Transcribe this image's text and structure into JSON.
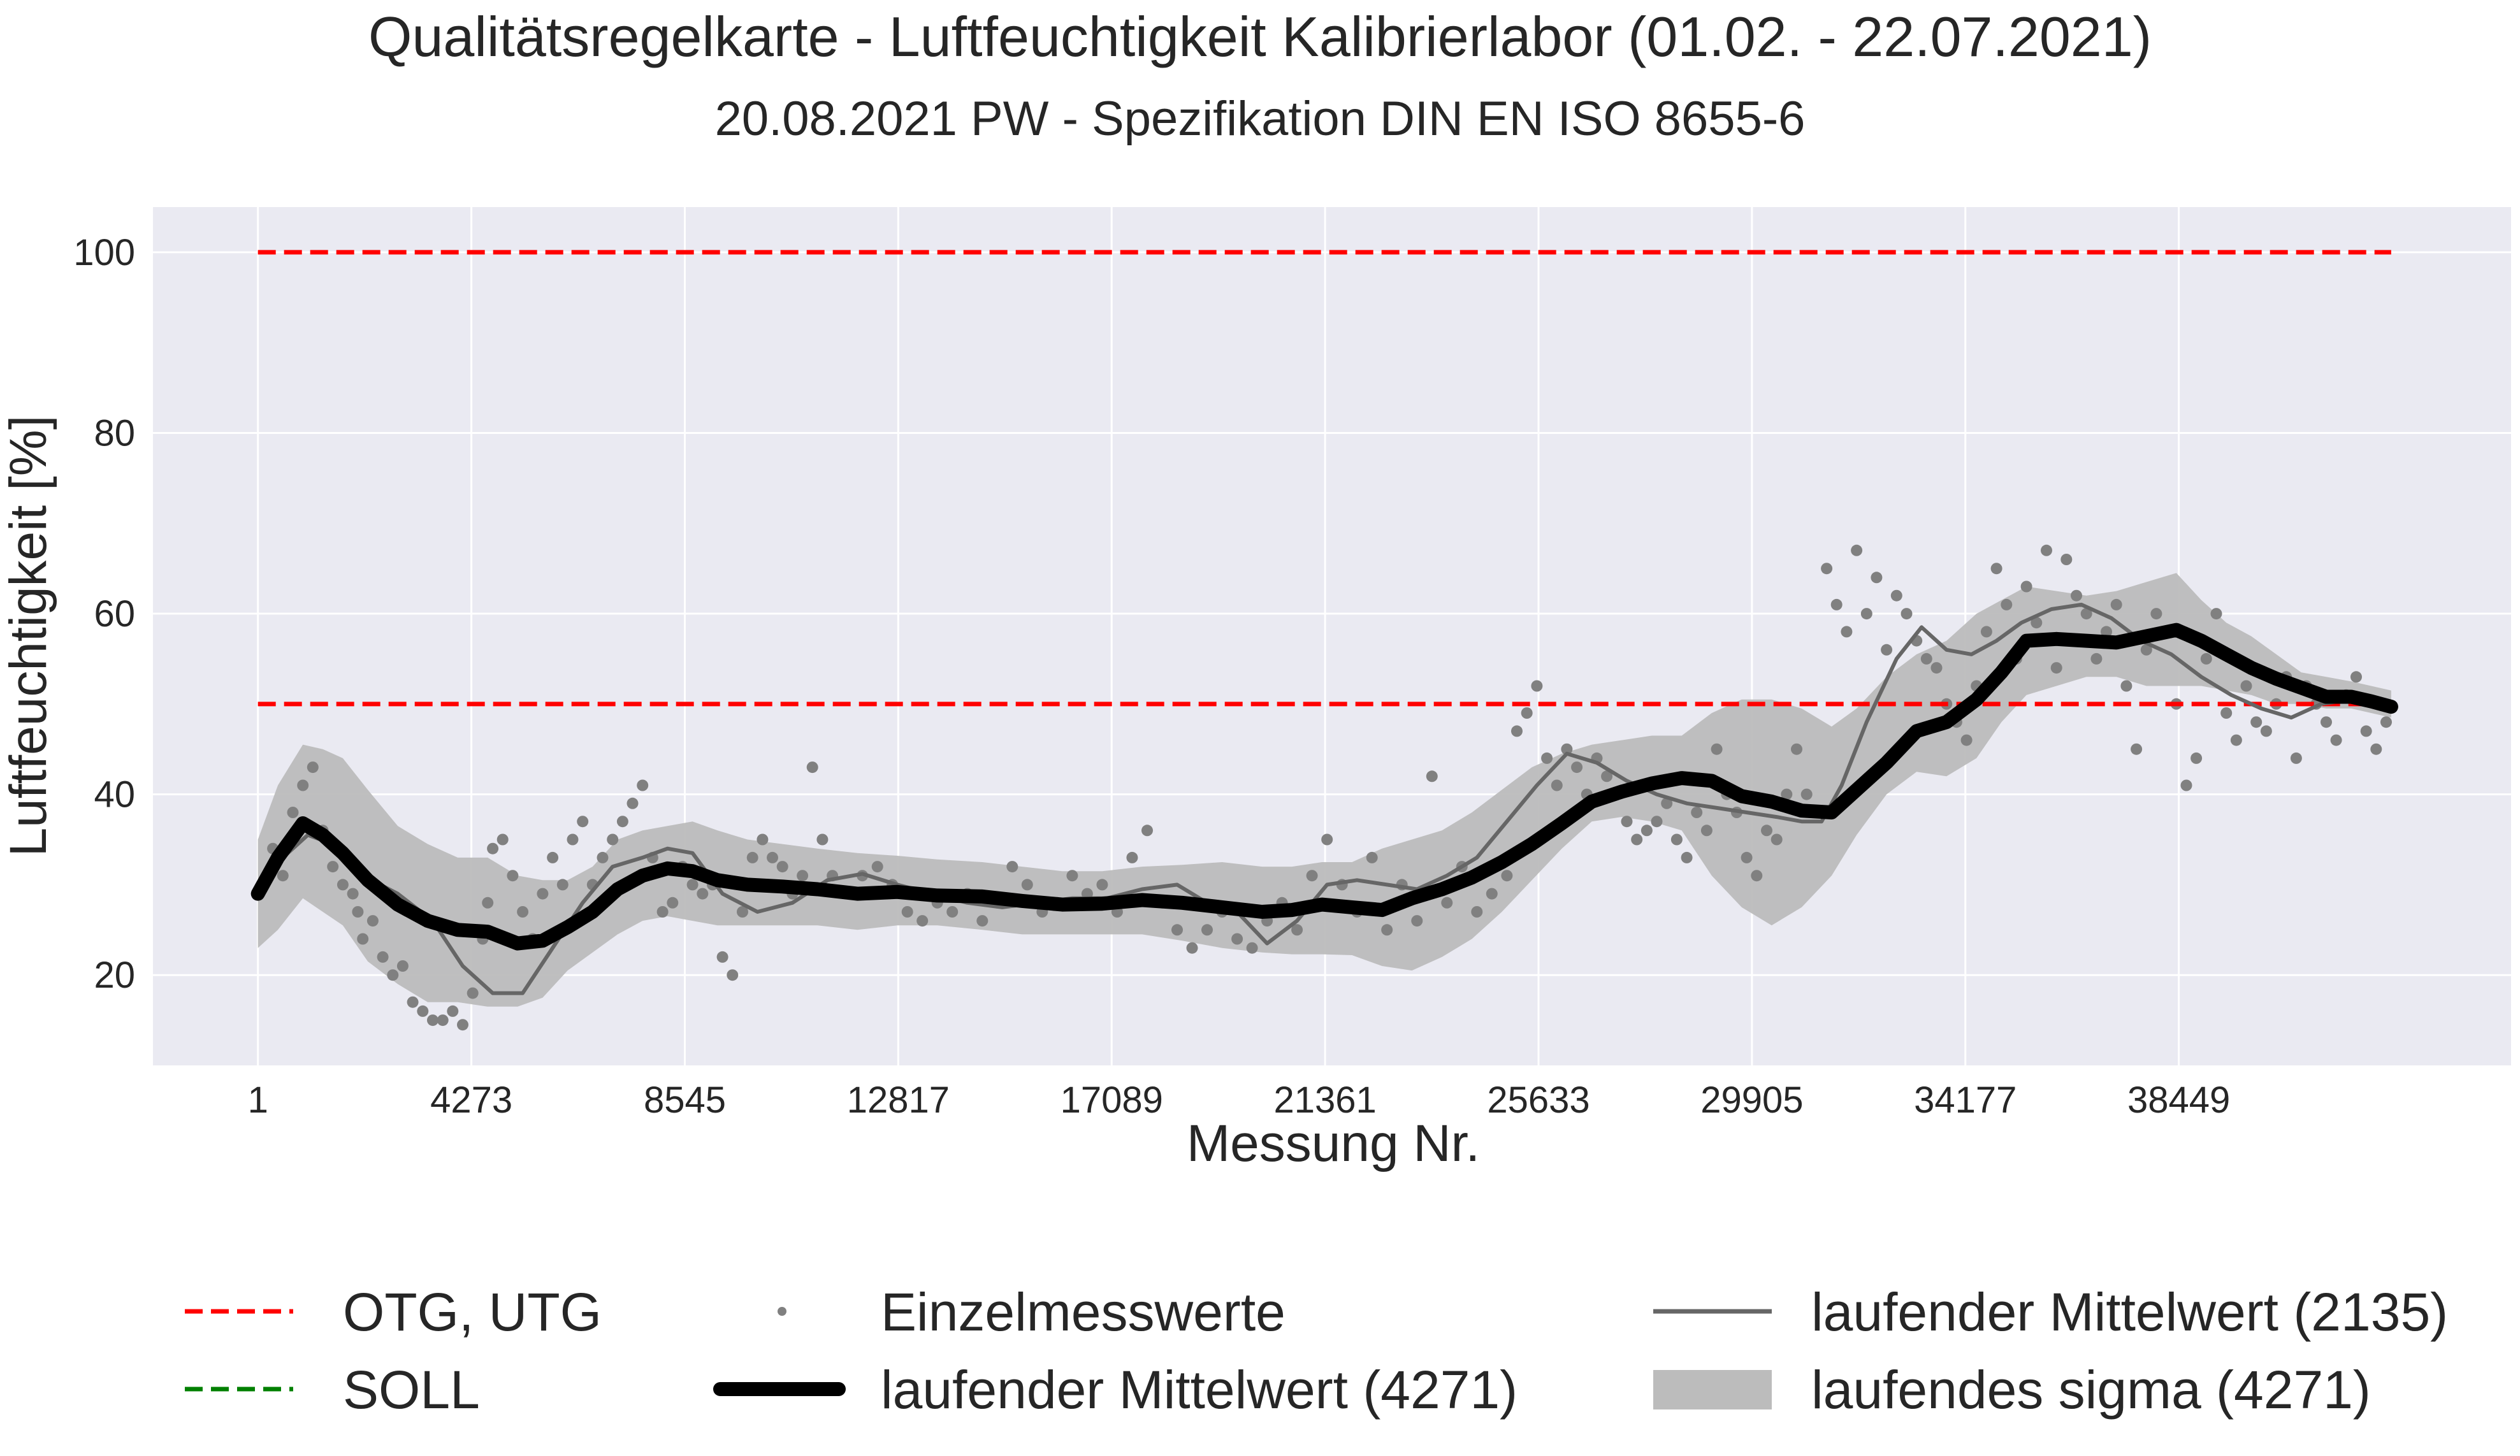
{
  "chart_data": {
    "type": "line",
    "title": "Qualitätsregelkarte - Luftfeuchtigkeit Kalibrierlabor (01.02. - 22.07.2021)",
    "subtitle": "20.08.2021 PW - Spezifikation DIN EN ISO 8655-6",
    "xlabel": "Messung Nr.",
    "ylabel": "Luftfeuchtigkeit [%]",
    "xlim": [
      -2100,
      45100
    ],
    "ylim": [
      10,
      105
    ],
    "x_ticks": [
      1,
      4273,
      8545,
      12817,
      17089,
      21361,
      25633,
      29905,
      34177,
      38449
    ],
    "x_tick_labels": [
      "1",
      "4273",
      "8545",
      "12817",
      "17089",
      "21361",
      "25633",
      "29905",
      "34177",
      "38449"
    ],
    "y_ticks": [
      20,
      40,
      60,
      80,
      100
    ],
    "y_tick_labels": [
      "20",
      "40",
      "60",
      "80",
      "100"
    ],
    "grid": true,
    "background": "#eaeaf2",
    "limits": [
      {
        "name": "OTG",
        "value": 100,
        "color": "#ff0000",
        "x": [
          1,
          42700
        ]
      },
      {
        "name": "UTG",
        "value": 50,
        "color": "#ff0000",
        "x": [
          1,
          42700
        ]
      }
    ],
    "series": [
      {
        "name": "laufender Mittelwert (4271)",
        "role": "mean_long",
        "color": "#000000",
        "x": [
          1,
          400,
          900,
          1300,
          1700,
          2200,
          2800,
          3400,
          4000,
          4600,
          5200,
          5700,
          6200,
          6700,
          7200,
          7700,
          8200,
          8700,
          9200,
          9800,
          10500,
          11200,
          12000,
          12800,
          13600,
          14500,
          15300,
          16100,
          16900,
          17700,
          18500,
          19300,
          20100,
          20700,
          21300,
          21900,
          22500,
          23100,
          23700,
          24300,
          24900,
          25500,
          26100,
          26700,
          27300,
          27900,
          28500,
          29100,
          29700,
          30300,
          30900,
          31500,
          32000,
          32600,
          33200,
          33800,
          34400,
          34900,
          35400,
          36000,
          36600,
          37200,
          37800,
          38400,
          38900,
          39400,
          39900,
          40400,
          40900,
          41400,
          41900,
          42300,
          42700
        ],
        "values": [
          29,
          33,
          36.8,
          35.5,
          33.5,
          30.5,
          27.8,
          26,
          25,
          24.8,
          23.5,
          23.8,
          25.3,
          27,
          29.5,
          31,
          31.8,
          31.5,
          30.5,
          30,
          29.8,
          29.5,
          29,
          29.2,
          28.8,
          28.7,
          28.2,
          27.8,
          27.9,
          28.3,
          28,
          27.5,
          27,
          27.2,
          27.8,
          27.5,
          27.2,
          28.5,
          29.5,
          30.8,
          32.5,
          34.5,
          36.8,
          39.2,
          40.3,
          41.2,
          41.8,
          41.5,
          39.8,
          39.2,
          38.2,
          38,
          40.5,
          43.5,
          47,
          48,
          50.5,
          53.5,
          57,
          57.2,
          57,
          56.8,
          57.5,
          58.2,
          57,
          55.5,
          54,
          52.8,
          51.8,
          50.8,
          50.8,
          50.3,
          49.7
        ]
      },
      {
        "name": "laufender Mittelwert (2135)",
        "role": "mean_short",
        "color": "#666666",
        "x": [
          1,
          500,
          1000,
          1500,
          2100,
          2800,
          3500,
          4100,
          4700,
          5300,
          5900,
          6500,
          7100,
          7700,
          8200,
          8700,
          9300,
          10000,
          10700,
          11400,
          12100,
          12800,
          13500,
          14200,
          14900,
          15600,
          16300,
          17000,
          17700,
          18400,
          19000,
          19600,
          20200,
          20800,
          21400,
          22000,
          22600,
          23200,
          23800,
          24400,
          25000,
          25600,
          26200,
          26800,
          27400,
          28000,
          28600,
          29200,
          29800,
          30400,
          30900,
          31300,
          31700,
          32200,
          32800,
          33300,
          33800,
          34300,
          34800,
          35300,
          35900,
          36500,
          37100,
          37700,
          38300,
          38900,
          39500,
          40100,
          40700,
          41300,
          41900,
          42400,
          42700
        ],
        "values": [
          30,
          33,
          35.5,
          34.5,
          31,
          29,
          26,
          21,
          18,
          18,
          23,
          28,
          32,
          33,
          34,
          33.5,
          29,
          27,
          28,
          30.5,
          31.2,
          30,
          29,
          28,
          27.5,
          28,
          28.5,
          28.5,
          29.5,
          30,
          28,
          27,
          23.5,
          26,
          30,
          30.5,
          30,
          29.5,
          31,
          33,
          37,
          41,
          44.5,
          43.5,
          41.5,
          40,
          39,
          38.5,
          38,
          37.5,
          37,
          37,
          41,
          48,
          55,
          58.5,
          56,
          55.5,
          57,
          59,
          60.5,
          61,
          59.5,
          57,
          55.5,
          53,
          51,
          49.5,
          48.5,
          50,
          50.5,
          50,
          49.5
        ]
      },
      {
        "name": "laufendes sigma (4271)",
        "role": "sigma_band",
        "color": "#bcbcbc",
        "x": [
          1,
          400,
          900,
          1300,
          1700,
          2200,
          2800,
          3400,
          4000,
          4600,
          5200,
          5700,
          6200,
          6700,
          7200,
          7700,
          8200,
          8700,
          9200,
          9800,
          10500,
          11200,
          12000,
          12800,
          13600,
          14500,
          15300,
          16100,
          16900,
          17700,
          18500,
          19300,
          20100,
          20700,
          21300,
          21900,
          22500,
          23100,
          23700,
          24300,
          24900,
          25500,
          26100,
          26700,
          27300,
          27900,
          28500,
          29100,
          29700,
          30300,
          30900,
          31500,
          32000,
          32600,
          33200,
          33800,
          34400,
          34900,
          35400,
          36000,
          36600,
          37200,
          37800,
          38400,
          38900,
          39400,
          39900,
          40400,
          40900,
          41400,
          41900,
          42300,
          42700
        ],
        "lower": [
          23,
          25,
          28.5,
          27,
          25.5,
          21.5,
          19,
          17,
          17,
          16.5,
          16.5,
          17.5,
          20.5,
          22.5,
          24.5,
          26,
          26.5,
          26,
          25.5,
          25.5,
          25.5,
          25.5,
          25,
          25.5,
          25.5,
          25,
          24.5,
          24.5,
          24.5,
          24.5,
          23.8,
          23,
          22.5,
          22.3,
          22.3,
          22.2,
          21,
          20.5,
          22,
          24,
          27,
          30.5,
          34,
          37,
          37.5,
          37,
          36,
          31,
          27.5,
          25.5,
          27.5,
          31,
          35.5,
          40,
          42.5,
          42,
          44,
          48,
          51,
          52,
          53,
          53,
          52,
          52,
          52,
          51.5,
          51,
          50,
          50,
          49.5,
          49.5,
          49,
          48.5
        ],
        "upper": [
          35,
          41,
          45.5,
          45,
          44,
          40.5,
          36.5,
          34.5,
          33,
          33,
          31,
          30.5,
          30.5,
          32,
          35,
          36,
          36.5,
          37,
          36,
          35,
          34.5,
          34,
          33.5,
          33.2,
          32.8,
          32.5,
          32,
          31.5,
          31.5,
          32,
          32.2,
          32.5,
          32,
          32,
          32.5,
          32.5,
          34,
          35,
          36,
          38,
          40.5,
          43,
          44.5,
          45.5,
          46,
          46.5,
          46.5,
          49,
          50.5,
          50.5,
          49.5,
          47.5,
          49.5,
          53,
          55.5,
          57,
          60,
          61.5,
          63,
          62.5,
          62,
          62.5,
          63.5,
          64.5,
          61.5,
          59,
          57.5,
          55.5,
          53.5,
          53,
          52.5,
          52,
          51.5
        ]
      },
      {
        "name": "Einzelmesswerte",
        "role": "points",
        "color": "#808080",
        "x": [
          100,
          300,
          500,
          700,
          900,
          1100,
          1300,
          1500,
          1700,
          1900,
          2000,
          2100,
          2300,
          2500,
          2700,
          2900,
          3100,
          3300,
          3500,
          3700,
          3900,
          4100,
          4300,
          4500,
          4600,
          4700,
          4900,
          5100,
          5300,
          5500,
          5700,
          5900,
          6100,
          6300,
          6500,
          6700,
          6900,
          7100,
          7300,
          7500,
          7700,
          7900,
          8100,
          8300,
          8500,
          8700,
          8900,
          9100,
          9300,
          9500,
          9700,
          9900,
          10100,
          10300,
          10500,
          10700,
          10900,
          11100,
          11300,
          11500,
          11800,
          12100,
          12400,
          12700,
          13000,
          13300,
          13600,
          13900,
          14200,
          14500,
          14800,
          15100,
          15400,
          15700,
          16000,
          16300,
          16600,
          16900,
          17200,
          17500,
          17800,
          18100,
          18400,
          18700,
          19000,
          19300,
          19600,
          19900,
          20200,
          20500,
          20800,
          21100,
          21400,
          21700,
          22000,
          22300,
          22600,
          22900,
          23200,
          23500,
          23800,
          24100,
          24400,
          24700,
          25000,
          25200,
          25400,
          25600,
          25800,
          26000,
          26200,
          26400,
          26600,
          26800,
          27000,
          27200,
          27400,
          27600,
          27800,
          28000,
          28200,
          28400,
          28600,
          28800,
          29000,
          29200,
          29400,
          29600,
          29800,
          30000,
          30200,
          30400,
          30600,
          30800,
          31000,
          31200,
          31400,
          31600,
          31800,
          32000,
          32200,
          32400,
          32600,
          32800,
          33000,
          33200,
          33400,
          33600,
          33800,
          34000,
          34200,
          34400,
          34600,
          34800,
          35000,
          35200,
          35400,
          35600,
          35800,
          36000,
          36200,
          36400,
          36600,
          36800,
          37000,
          37200,
          37400,
          37600,
          37800,
          38000,
          38200,
          38400,
          38600,
          38800,
          39000,
          39200,
          39400,
          39600,
          39800,
          40000,
          40200,
          40400,
          40600,
          40800,
          41000,
          41200,
          41400,
          41600,
          41800,
          42000,
          42200,
          42400,
          42600
        ],
        "values": [
          30,
          34,
          31,
          38,
          41,
          43,
          36,
          32,
          30,
          29,
          27,
          24,
          26,
          22,
          20,
          21,
          17,
          16,
          15,
          15,
          16,
          14.5,
          18,
          24,
          28,
          34,
          35,
          31,
          27,
          24,
          29,
          33,
          30,
          35,
          37,
          30,
          33,
          35,
          37,
          39,
          41,
          33,
          27,
          28,
          32,
          30,
          29,
          30,
          22,
          20,
          27,
          33,
          35,
          33,
          32,
          29,
          31,
          43,
          35,
          31,
          29,
          31,
          32,
          30,
          27,
          26,
          28,
          27,
          29,
          26,
          28,
          32,
          30,
          27,
          28,
          31,
          29,
          30,
          27,
          33,
          36,
          28,
          25,
          23,
          25,
          27,
          24,
          23,
          26,
          28,
          25,
          31,
          35,
          30,
          27,
          33,
          25,
          30,
          26,
          42,
          28,
          32,
          27,
          29,
          31,
          47,
          49,
          52,
          44,
          41,
          45,
          43,
          40,
          44,
          42,
          40,
          37,
          35,
          36,
          37,
          39,
          35,
          33,
          38,
          36,
          45,
          40,
          38,
          33,
          31,
          36,
          35,
          40,
          45,
          40,
          38,
          65,
          61,
          58,
          67,
          60,
          64,
          56,
          62,
          60,
          57,
          55,
          54,
          50,
          48,
          46,
          52,
          58,
          65,
          61,
          55,
          63,
          59,
          67,
          54,
          66,
          62,
          60,
          55,
          58,
          61,
          52,
          45,
          56,
          60,
          58,
          50,
          41,
          44,
          55,
          60,
          49,
          46,
          52,
          48,
          47,
          50,
          53,
          44,
          52,
          50,
          48,
          46,
          51,
          53,
          47,
          45,
          48
        ]
      }
    ],
    "legend": {
      "placement": "bottom",
      "entries": [
        {
          "label": "OTG, UTG",
          "style": "dashed",
          "color": "#ff0000"
        },
        {
          "label": "SOLL",
          "style": "dashed",
          "color": "#008000"
        },
        {
          "label": "Einzelmesswerte",
          "style": "dot",
          "color": "#808080"
        },
        {
          "label": "laufender Mittelwert (4271)",
          "style": "thick-line",
          "color": "#000000"
        },
        {
          "label": "laufender Mittelwert (2135)",
          "style": "thin-line",
          "color": "#666666"
        },
        {
          "label": "laufendes sigma (4271)",
          "style": "patch",
          "color": "#bcbcbc"
        }
      ]
    }
  }
}
